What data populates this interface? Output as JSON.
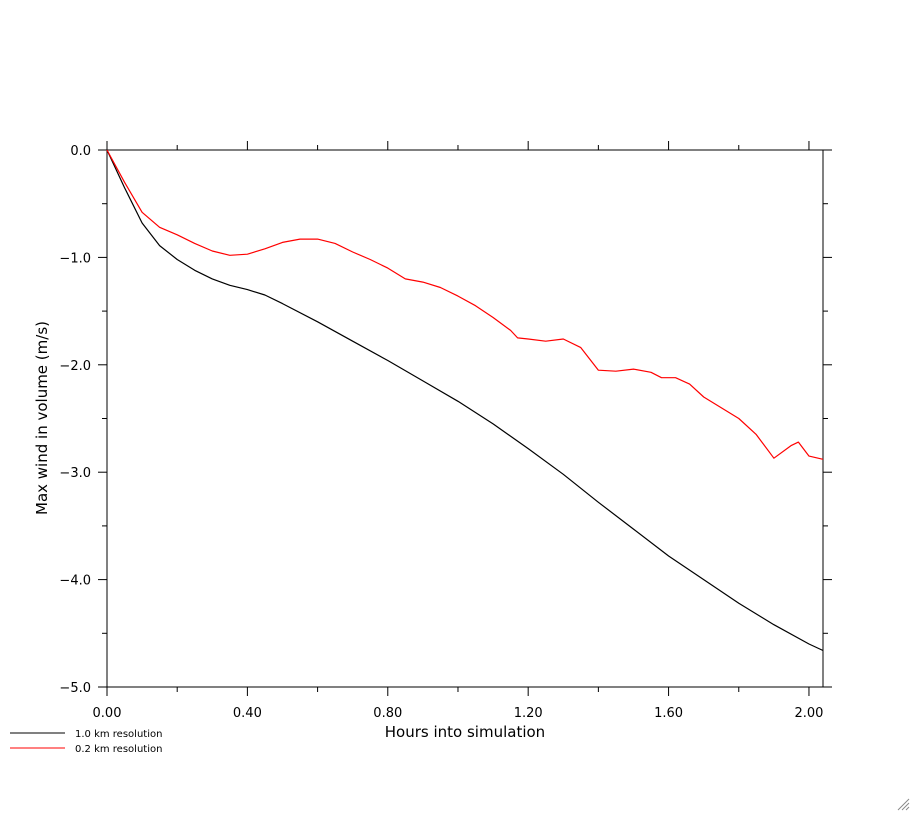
{
  "chart_data": {
    "type": "line",
    "xlabel": "Hours into simulation",
    "ylabel": "Max wind in volume (m/s)",
    "xlim": [
      0.0,
      2.04
    ],
    "ylim": [
      -5.0,
      0.0
    ],
    "xticks": [
      "0.00",
      "0.40",
      "0.80",
      "1.20",
      "1.60",
      "2.00"
    ],
    "xtick_values": [
      0.0,
      0.4,
      0.8,
      1.2,
      1.6,
      2.0
    ],
    "yticks": [
      "0.0",
      "-1.0",
      "-2.0",
      "-3.0",
      "-4.0",
      "-5.0"
    ],
    "ytick_values": [
      0.0,
      -1.0,
      -2.0,
      -3.0,
      -4.0,
      -5.0
    ],
    "grid": false,
    "legend_position": "bottom-left",
    "series": [
      {
        "name": "1.0 km resolution",
        "color": "#000000",
        "x": [
          0.0,
          0.05,
          0.1,
          0.15,
          0.2,
          0.25,
          0.3,
          0.35,
          0.4,
          0.45,
          0.5,
          0.6,
          0.7,
          0.8,
          0.9,
          1.0,
          1.1,
          1.2,
          1.3,
          1.4,
          1.5,
          1.6,
          1.7,
          1.8,
          1.9,
          2.0,
          2.04
        ],
        "y": [
          0.0,
          -0.35,
          -0.68,
          -0.89,
          -1.02,
          -1.12,
          -1.2,
          -1.26,
          -1.3,
          -1.35,
          -1.43,
          -1.6,
          -1.78,
          -1.96,
          -2.15,
          -2.34,
          -2.55,
          -2.78,
          -3.02,
          -3.28,
          -3.53,
          -3.78,
          -4.0,
          -4.22,
          -4.42,
          -4.6,
          -4.66
        ]
      },
      {
        "name": "0.2 km resolution",
        "color": "#ff0000",
        "x": [
          0.0,
          0.05,
          0.1,
          0.15,
          0.2,
          0.25,
          0.3,
          0.35,
          0.4,
          0.45,
          0.5,
          0.55,
          0.6,
          0.65,
          0.7,
          0.75,
          0.8,
          0.85,
          0.9,
          0.95,
          1.0,
          1.05,
          1.1,
          1.15,
          1.17,
          1.2,
          1.25,
          1.3,
          1.35,
          1.4,
          1.45,
          1.5,
          1.55,
          1.58,
          1.62,
          1.66,
          1.7,
          1.8,
          1.85,
          1.9,
          1.95,
          1.97,
          2.0,
          2.04
        ],
        "y": [
          0.0,
          -0.3,
          -0.58,
          -0.72,
          -0.79,
          -0.87,
          -0.94,
          -0.98,
          -0.97,
          -0.92,
          -0.86,
          -0.83,
          -0.83,
          -0.87,
          -0.95,
          -1.02,
          -1.1,
          -1.2,
          -1.23,
          -1.28,
          -1.36,
          -1.45,
          -1.56,
          -1.68,
          -1.75,
          -1.76,
          -1.78,
          -1.76,
          -1.84,
          -2.05,
          -2.06,
          -2.04,
          -2.07,
          -2.12,
          -2.12,
          -2.18,
          -2.3,
          -2.5,
          -2.65,
          -2.87,
          -2.75,
          -2.72,
          -2.85,
          -2.88
        ]
      }
    ]
  }
}
